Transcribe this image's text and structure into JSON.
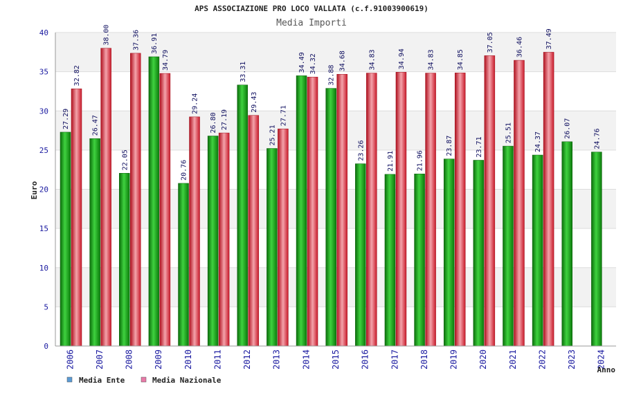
{
  "chart_data": {
    "type": "bar",
    "title": "APS ASSOCIAZIONE PRO LOCO VALLATA (c.f.91003900619)",
    "subtitle": "Media Importi",
    "xlabel": "Anno",
    "ylabel": "Euro",
    "ylim": [
      0,
      40
    ],
    "yticks": [
      "0",
      "5",
      "10",
      "15",
      "20",
      "25",
      "30",
      "35",
      "40"
    ],
    "grid": true,
    "legend_position": "bottom-left",
    "categories": [
      "2006",
      "2007",
      "2008",
      "2009",
      "2010",
      "2011",
      "2012",
      "2013",
      "2014",
      "2015",
      "2016",
      "2017",
      "2018",
      "2019",
      "2020",
      "2021",
      "2022",
      "2023",
      "2024"
    ],
    "series": [
      {
        "name": "Media Ente",
        "color": "#13a813",
        "legend_color": "#5b9bd5",
        "values": [
          27.29,
          26.47,
          22.05,
          36.91,
          20.76,
          26.8,
          33.31,
          25.21,
          34.49,
          32.88,
          23.26,
          21.91,
          21.96,
          23.87,
          23.71,
          25.51,
          24.37,
          26.07,
          24.76
        ],
        "labels": [
          "27.29",
          "26.47",
          "22.05",
          "36.91",
          "20.76",
          "26.80",
          "33.31",
          "25.21",
          "34.49",
          "32.88",
          "23.26",
          "21.91",
          "21.96",
          "23.87",
          "23.71",
          "25.51",
          "24.37",
          "26.07",
          "24.76"
        ]
      },
      {
        "name": "Media Nazionale",
        "color": "#e8283c",
        "legend_color": "#e87aa8",
        "values": [
          32.82,
          38.0,
          37.36,
          34.79,
          29.24,
          27.19,
          29.43,
          27.71,
          34.32,
          34.68,
          34.83,
          34.94,
          34.83,
          34.85,
          37.05,
          36.46,
          37.49,
          null,
          null
        ],
        "labels": [
          "32.82",
          "38.00",
          "37.36",
          "34.79",
          "29.24",
          "27.19",
          "29.43",
          "27.71",
          "34.32",
          "34.68",
          "34.83",
          "34.94",
          "34.83",
          "34.85",
          "37.05",
          "36.46",
          "37.49",
          null,
          null
        ]
      }
    ]
  }
}
